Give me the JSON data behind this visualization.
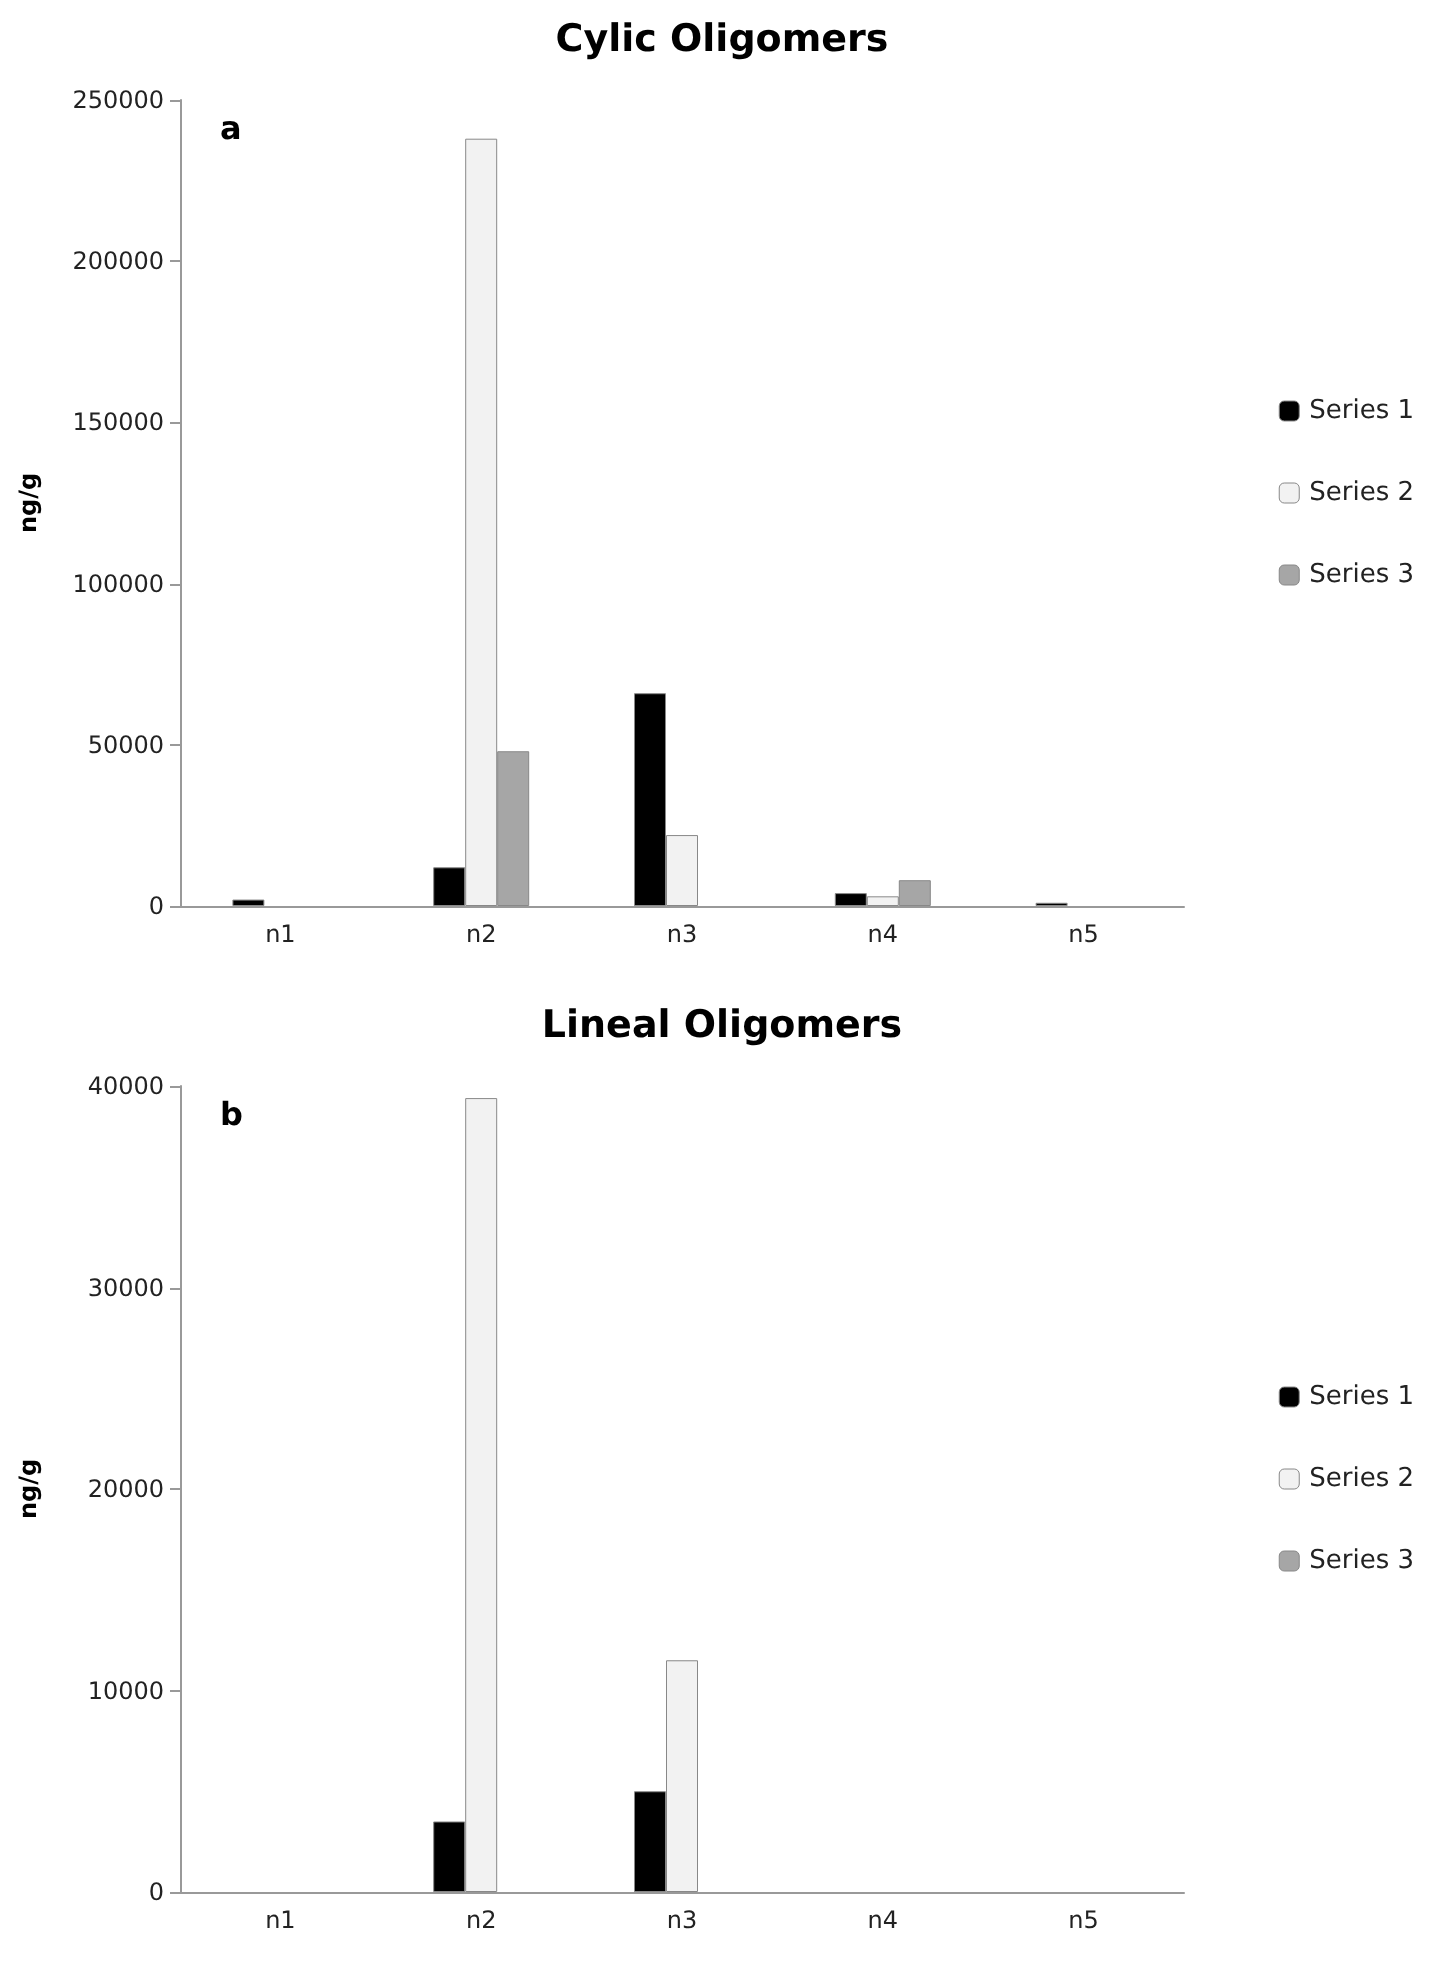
{
  "chart_data": [
    {
      "type": "bar",
      "title": "Cylic Oligomers",
      "ylabel": "ng/g",
      "annotations": [
        "a"
      ],
      "categories": [
        "n1",
        "n2",
        "n3",
        "n4",
        "n5"
      ],
      "ylim": [
        0,
        250000
      ],
      "yticks": [
        0,
        50000,
        100000,
        150000,
        200000,
        250000
      ],
      "legend": "right",
      "grid": false,
      "series": [
        {
          "name": "Series 1",
          "color": "#000000",
          "values": [
            2000,
            12000,
            66000,
            4000,
            1000
          ]
        },
        {
          "name": "Series 2",
          "color": "#f2f2f2",
          "values": [
            null,
            238000,
            22000,
            3000,
            null
          ]
        },
        {
          "name": "Series 3",
          "color": "#a6a6a6",
          "values": [
            null,
            48000,
            null,
            8000,
            null
          ]
        }
      ]
    },
    {
      "type": "bar",
      "title": "Lineal Oligomers",
      "ylabel": "ng/g",
      "annotations": [
        "b"
      ],
      "categories": [
        "n1",
        "n2",
        "n3",
        "n4",
        "n5"
      ],
      "ylim": [
        0,
        40000
      ],
      "yticks": [
        0,
        10000,
        20000,
        30000,
        40000
      ],
      "legend": "right",
      "grid": false,
      "series": [
        {
          "name": "Series 1",
          "color": "#000000",
          "values": [
            null,
            3500,
            5000,
            null,
            null
          ]
        },
        {
          "name": "Series 2",
          "color": "#f2f2f2",
          "values": [
            null,
            39400,
            11500,
            null,
            null
          ]
        },
        {
          "name": "Series 3",
          "color": "#a6a6a6",
          "values": [
            null,
            null,
            null,
            null,
            null
          ]
        }
      ]
    }
  ]
}
